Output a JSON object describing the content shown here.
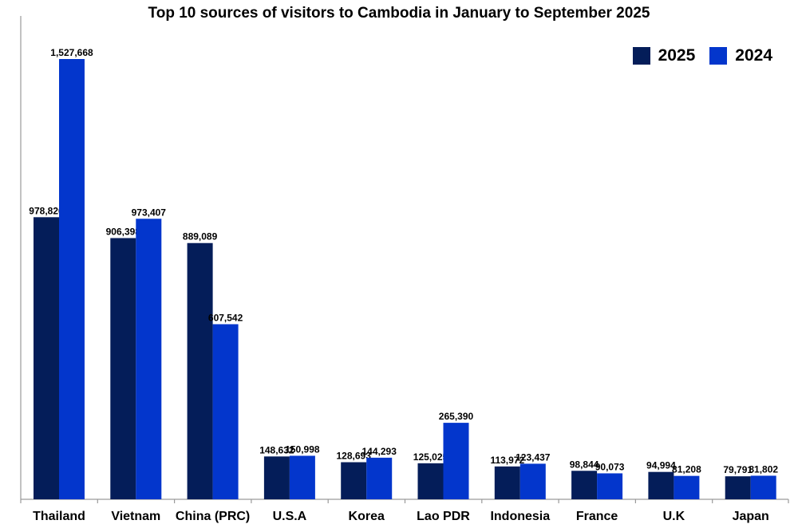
{
  "chart_data": {
    "type": "bar",
    "title": "Top 10 sources of visitors to Cambodia in January to September 2025",
    "categories": [
      "Thailand",
      "Vietnam",
      "China (PRC)",
      "U.S.A",
      "Korea",
      "Lao PDR",
      "Indonesia",
      "France",
      "U.K",
      "Japan"
    ],
    "series": [
      {
        "name": "2025",
        "color": "#041d59",
        "values": [
          978826,
          906398,
          889089,
          148632,
          128693,
          125025,
          113972,
          98844,
          94994,
          79791
        ],
        "labels": [
          "978,826",
          "906,398",
          "889,089",
          "148,632",
          "128,693",
          "125,025",
          "113,972",
          "98,844",
          "94,994",
          "79,791"
        ]
      },
      {
        "name": "2024",
        "color": "#0336cc",
        "values": [
          1527668,
          973407,
          607542,
          150998,
          144293,
          265390,
          123437,
          90073,
          81208,
          81802
        ],
        "labels": [
          "1,527,668",
          "973,407",
          "607,542",
          "150,998",
          "144,293",
          "265,390",
          "123,437",
          "90,073",
          "81,208",
          "81,802"
        ]
      }
    ],
    "xlabel": "",
    "ylabel": "",
    "ylim": [
      0,
      1527668
    ],
    "grid": false,
    "legend_position": "top-right"
  }
}
